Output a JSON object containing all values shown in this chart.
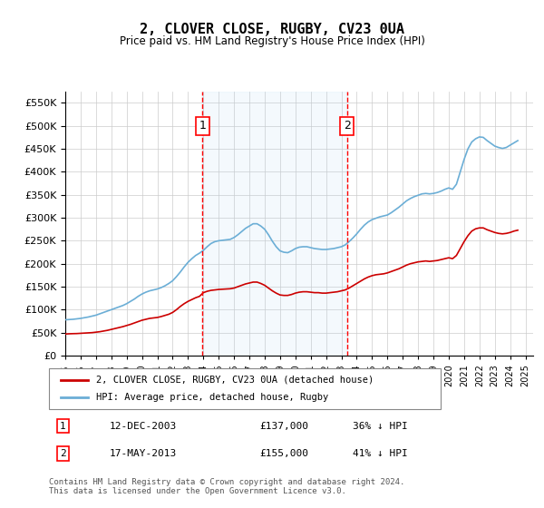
{
  "title": "2, CLOVER CLOSE, RUGBY, CV23 0UA",
  "subtitle": "Price paid vs. HM Land Registry's House Price Index (HPI)",
  "ylabel_ticks": [
    "£0",
    "£50K",
    "£100K",
    "£150K",
    "£200K",
    "£250K",
    "£300K",
    "£350K",
    "£400K",
    "£450K",
    "£500K",
    "£550K"
  ],
  "ytick_values": [
    0,
    50000,
    100000,
    150000,
    200000,
    250000,
    300000,
    350000,
    400000,
    450000,
    500000,
    550000
  ],
  "ylim": [
    0,
    575000
  ],
  "xlim_start": 1995.0,
  "xlim_end": 2025.5,
  "marker1_x": 2003.95,
  "marker1_y": 137000,
  "marker1_label": "1",
  "marker1_date": "12-DEC-2003",
  "marker1_price": "£137,000",
  "marker1_hpi": "36% ↓ HPI",
  "marker2_x": 2013.37,
  "marker2_y": 155000,
  "marker2_label": "2",
  "marker2_date": "17-MAY-2013",
  "marker2_price": "£155,000",
  "marker2_hpi": "41% ↓ HPI",
  "hpi_color": "#6baed6",
  "price_color": "#cc0000",
  "background_color": "#f0f4ff",
  "plot_bg": "#ffffff",
  "legend_label_price": "2, CLOVER CLOSE, RUGBY, CV23 0UA (detached house)",
  "legend_label_hpi": "HPI: Average price, detached house, Rugby",
  "footer": "Contains HM Land Registry data © Crown copyright and database right 2024.\nThis data is licensed under the Open Government Licence v3.0.",
  "hpi_data_x": [
    1995.0,
    1995.25,
    1995.5,
    1995.75,
    1996.0,
    1996.25,
    1996.5,
    1996.75,
    1997.0,
    1997.25,
    1997.5,
    1997.75,
    1998.0,
    1998.25,
    1998.5,
    1998.75,
    1999.0,
    1999.25,
    1999.5,
    1999.75,
    2000.0,
    2000.25,
    2000.5,
    2000.75,
    2001.0,
    2001.25,
    2001.5,
    2001.75,
    2002.0,
    2002.25,
    2002.5,
    2002.75,
    2003.0,
    2003.25,
    2003.5,
    2003.75,
    2004.0,
    2004.25,
    2004.5,
    2004.75,
    2005.0,
    2005.25,
    2005.5,
    2005.75,
    2006.0,
    2006.25,
    2006.5,
    2006.75,
    2007.0,
    2007.25,
    2007.5,
    2007.75,
    2008.0,
    2008.25,
    2008.5,
    2008.75,
    2009.0,
    2009.25,
    2009.5,
    2009.75,
    2010.0,
    2010.25,
    2010.5,
    2010.75,
    2011.0,
    2011.25,
    2011.5,
    2011.75,
    2012.0,
    2012.25,
    2012.5,
    2012.75,
    2013.0,
    2013.25,
    2013.5,
    2013.75,
    2014.0,
    2014.25,
    2014.5,
    2014.75,
    2015.0,
    2015.25,
    2015.5,
    2015.75,
    2016.0,
    2016.25,
    2016.5,
    2016.75,
    2017.0,
    2017.25,
    2017.5,
    2017.75,
    2018.0,
    2018.25,
    2018.5,
    2018.75,
    2019.0,
    2019.25,
    2019.5,
    2019.75,
    2020.0,
    2020.25,
    2020.5,
    2020.75,
    2021.0,
    2021.25,
    2021.5,
    2021.75,
    2022.0,
    2022.25,
    2022.5,
    2022.75,
    2023.0,
    2023.25,
    2023.5,
    2023.75,
    2024.0,
    2024.25,
    2024.5
  ],
  "hpi_data_y": [
    78000,
    78500,
    79000,
    80000,
    81000,
    82500,
    84000,
    86000,
    88000,
    91000,
    94000,
    97000,
    100000,
    103000,
    106000,
    109000,
    113000,
    118000,
    123000,
    129000,
    134000,
    138000,
    141000,
    143000,
    145000,
    148000,
    152000,
    157000,
    163000,
    172000,
    182000,
    193000,
    203000,
    211000,
    218000,
    223000,
    229000,
    237000,
    244000,
    248000,
    250000,
    251000,
    252000,
    253000,
    257000,
    263000,
    270000,
    277000,
    282000,
    287000,
    287000,
    282000,
    275000,
    263000,
    249000,
    237000,
    228000,
    225000,
    224000,
    228000,
    233000,
    236000,
    237000,
    237000,
    235000,
    233000,
    232000,
    231000,
    231000,
    232000,
    233000,
    235000,
    237000,
    241000,
    248000,
    256000,
    265000,
    275000,
    284000,
    291000,
    296000,
    299000,
    302000,
    304000,
    306000,
    311000,
    317000,
    323000,
    330000,
    337000,
    342000,
    346000,
    349000,
    352000,
    353000,
    352000,
    353000,
    355000,
    358000,
    362000,
    365000,
    362000,
    373000,
    400000,
    427000,
    450000,
    465000,
    472000,
    476000,
    475000,
    468000,
    462000,
    456000,
    453000,
    451000,
    453000,
    458000,
    463000,
    468000
  ],
  "price_data_x": [
    1995.0,
    1995.25,
    1995.5,
    1995.75,
    1996.0,
    1996.25,
    1996.5,
    1996.75,
    1997.0,
    1997.25,
    1997.5,
    1997.75,
    1998.0,
    1998.25,
    1998.5,
    1998.75,
    1999.0,
    1999.25,
    1999.5,
    1999.75,
    2000.0,
    2000.25,
    2000.5,
    2000.75,
    2001.0,
    2001.25,
    2001.5,
    2001.75,
    2002.0,
    2002.25,
    2002.5,
    2002.75,
    2003.0,
    2003.25,
    2003.5,
    2003.75,
    2004.0,
    2004.25,
    2004.5,
    2004.75,
    2005.0,
    2005.25,
    2005.5,
    2005.75,
    2006.0,
    2006.25,
    2006.5,
    2006.75,
    2007.0,
    2007.25,
    2007.5,
    2007.75,
    2008.0,
    2008.25,
    2008.5,
    2008.75,
    2009.0,
    2009.25,
    2009.5,
    2009.75,
    2010.0,
    2010.25,
    2010.5,
    2010.75,
    2011.0,
    2011.25,
    2011.5,
    2011.75,
    2012.0,
    2012.25,
    2012.5,
    2012.75,
    2013.0,
    2013.25,
    2013.5,
    2013.75,
    2014.0,
    2014.25,
    2014.5,
    2014.75,
    2015.0,
    2015.25,
    2015.5,
    2015.75,
    2016.0,
    2016.25,
    2016.5,
    2016.75,
    2017.0,
    2017.25,
    2017.5,
    2017.75,
    2018.0,
    2018.25,
    2018.5,
    2018.75,
    2019.0,
    2019.25,
    2019.5,
    2019.75,
    2020.0,
    2020.25,
    2020.5,
    2020.75,
    2021.0,
    2021.25,
    2021.5,
    2021.75,
    2022.0,
    2022.25,
    2022.5,
    2022.75,
    2023.0,
    2023.25,
    2023.5,
    2023.75,
    2024.0,
    2024.25,
    2024.5
  ],
  "price_data_y": [
    47000,
    47500,
    47800,
    48000,
    48500,
    49000,
    49500,
    50000,
    51000,
    52000,
    53500,
    55000,
    57000,
    59000,
    61000,
    63000,
    65500,
    68000,
    71000,
    74000,
    77000,
    79000,
    81000,
    82000,
    83000,
    85000,
    87500,
    90000,
    94000,
    100000,
    107000,
    113000,
    118000,
    122000,
    126000,
    129000,
    137000,
    140000,
    142000,
    143000,
    144000,
    144500,
    145000,
    145500,
    147000,
    150000,
    153000,
    156000,
    158000,
    160000,
    160000,
    157000,
    153000,
    147000,
    141000,
    136000,
    132000,
    131000,
    131000,
    133000,
    136000,
    138000,
    139000,
    139000,
    138000,
    137000,
    137000,
    136000,
    136000,
    137000,
    138000,
    139000,
    141000,
    143000,
    147000,
    152000,
    157000,
    162000,
    167000,
    171000,
    174000,
    176000,
    177000,
    178000,
    180000,
    183000,
    186000,
    189000,
    193000,
    197000,
    200000,
    202000,
    204000,
    205000,
    206000,
    205000,
    206000,
    207000,
    209000,
    211000,
    213000,
    211000,
    218000,
    233000,
    248000,
    261000,
    271000,
    276000,
    278000,
    278000,
    274000,
    271000,
    268000,
    266000,
    265000,
    266000,
    268000,
    271000,
    273000
  ]
}
